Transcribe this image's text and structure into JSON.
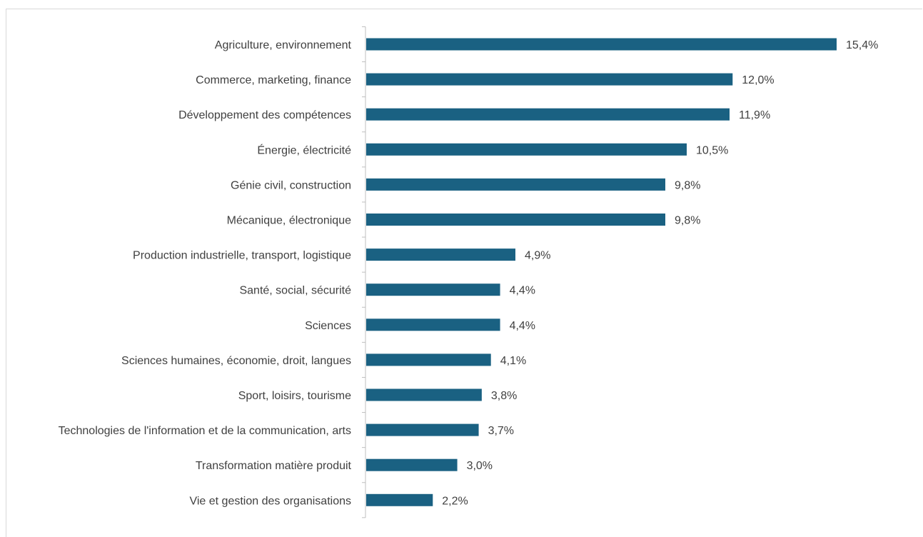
{
  "chart_data": {
    "type": "bar",
    "orientation": "horizontal",
    "categories": [
      "Agriculture, environnement",
      "Commerce, marketing, finance",
      "Développement des compétences",
      "Énergie, électricité",
      "Génie civil, construction",
      "Mécanique, électronique",
      "Production industrielle, transport, logistique",
      "Santé, social, sécurité",
      "Sciences",
      "Sciences humaines, économie, droit, langues",
      "Sport, loisirs, tourisme",
      "Technologies de l'information et de la communication, arts",
      "Transformation matière produit",
      "Vie et gestion des organisations"
    ],
    "values": [
      15.4,
      12.0,
      11.9,
      10.5,
      9.8,
      9.8,
      4.9,
      4.4,
      4.4,
      4.1,
      3.8,
      3.7,
      3.0,
      2.2
    ],
    "value_labels": [
      "15,4%",
      "12,0%",
      "11,9%",
      "10,5%",
      "9,8%",
      "9,8%",
      "4,9%",
      "4,4%",
      "4,4%",
      "4,1%",
      "3,8%",
      "3,7%",
      "3,0%",
      "2,2%"
    ],
    "unit": "%",
    "xlim": [
      0,
      15.4
    ],
    "grid": false,
    "legend": "none",
    "bar_color": "#1a6182",
    "axis_color": "#bfbfbf"
  }
}
